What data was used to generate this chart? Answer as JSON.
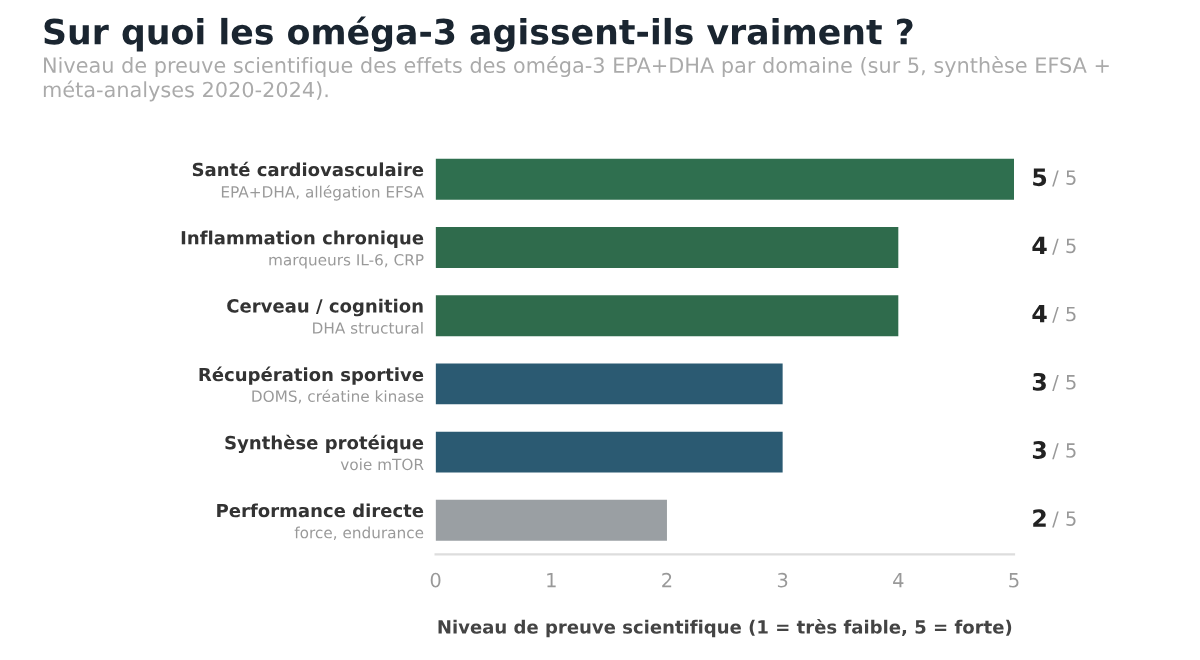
{
  "chart_data": {
    "type": "bar",
    "orientation": "horizontal",
    "title": "Sur quoi les oméga-3 agissent-ils vraiment ?",
    "subtitle": "Niveau de preuve scientifique des effets des oméga-3 EPA+DHA par domaine (sur 5, synthèse EFSA + méta-analyses 2020-2024).",
    "xlabel": "Niveau de preuve scientifique (1 = très faible, 5 = forte)",
    "categories": [
      "Santé cardiovasculaire\nEPA+DHA, allégation EFSA",
      "Inflammation chronique\nmarqueurs IL-6, CRP",
      "Cerveau / cognition\nDHA structural",
      "Récupération sportive\nDOMS, créatine kinase",
      "Synthèse protéique\nvoie mTOR",
      "Performance directe\nforce, endurance"
    ],
    "values": [
      5,
      4,
      4,
      3,
      3,
      2
    ],
    "colors": [
      "#2f6f4f",
      "#2f6b4c",
      "#2f6b4c",
      "#2b5a72",
      "#2b5a72",
      "#9a9fa3"
    ],
    "data_labels": true,
    "annotations": [
      "/ 5",
      "/ 5",
      "/ 5",
      "/ 5",
      "/ 5",
      "/ 5"
    ],
    "xlim": [
      0,
      5
    ],
    "xticks": [
      0,
      1,
      2,
      3,
      4,
      5
    ],
    "grid": false,
    "legend": false
  }
}
